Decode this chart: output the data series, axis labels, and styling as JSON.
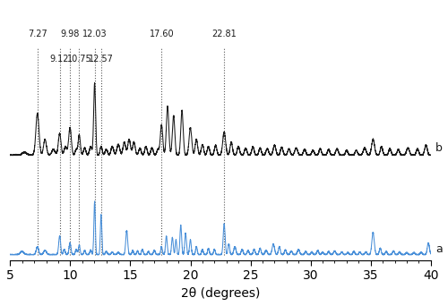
{
  "xlabel": "2θ (degrees)",
  "xlim": [
    5,
    40
  ],
  "background_color": "#ffffff",
  "label_a": "a",
  "label_b": "b",
  "blue_color": "#4a90d9",
  "black_color": "#1a1a1a",
  "vlines_top": {
    "7.27": "7.27",
    "9.98": "9.98",
    "12.03": "12.03",
    "17.60": "17.60",
    "22.81": "22.81"
  },
  "vlines_bottom": {
    "9.12": "9.12",
    "10.75": "10.75",
    "12.57": "12.57"
  },
  "tick_positions": [
    5,
    10,
    15,
    20,
    25,
    30,
    35,
    40
  ]
}
